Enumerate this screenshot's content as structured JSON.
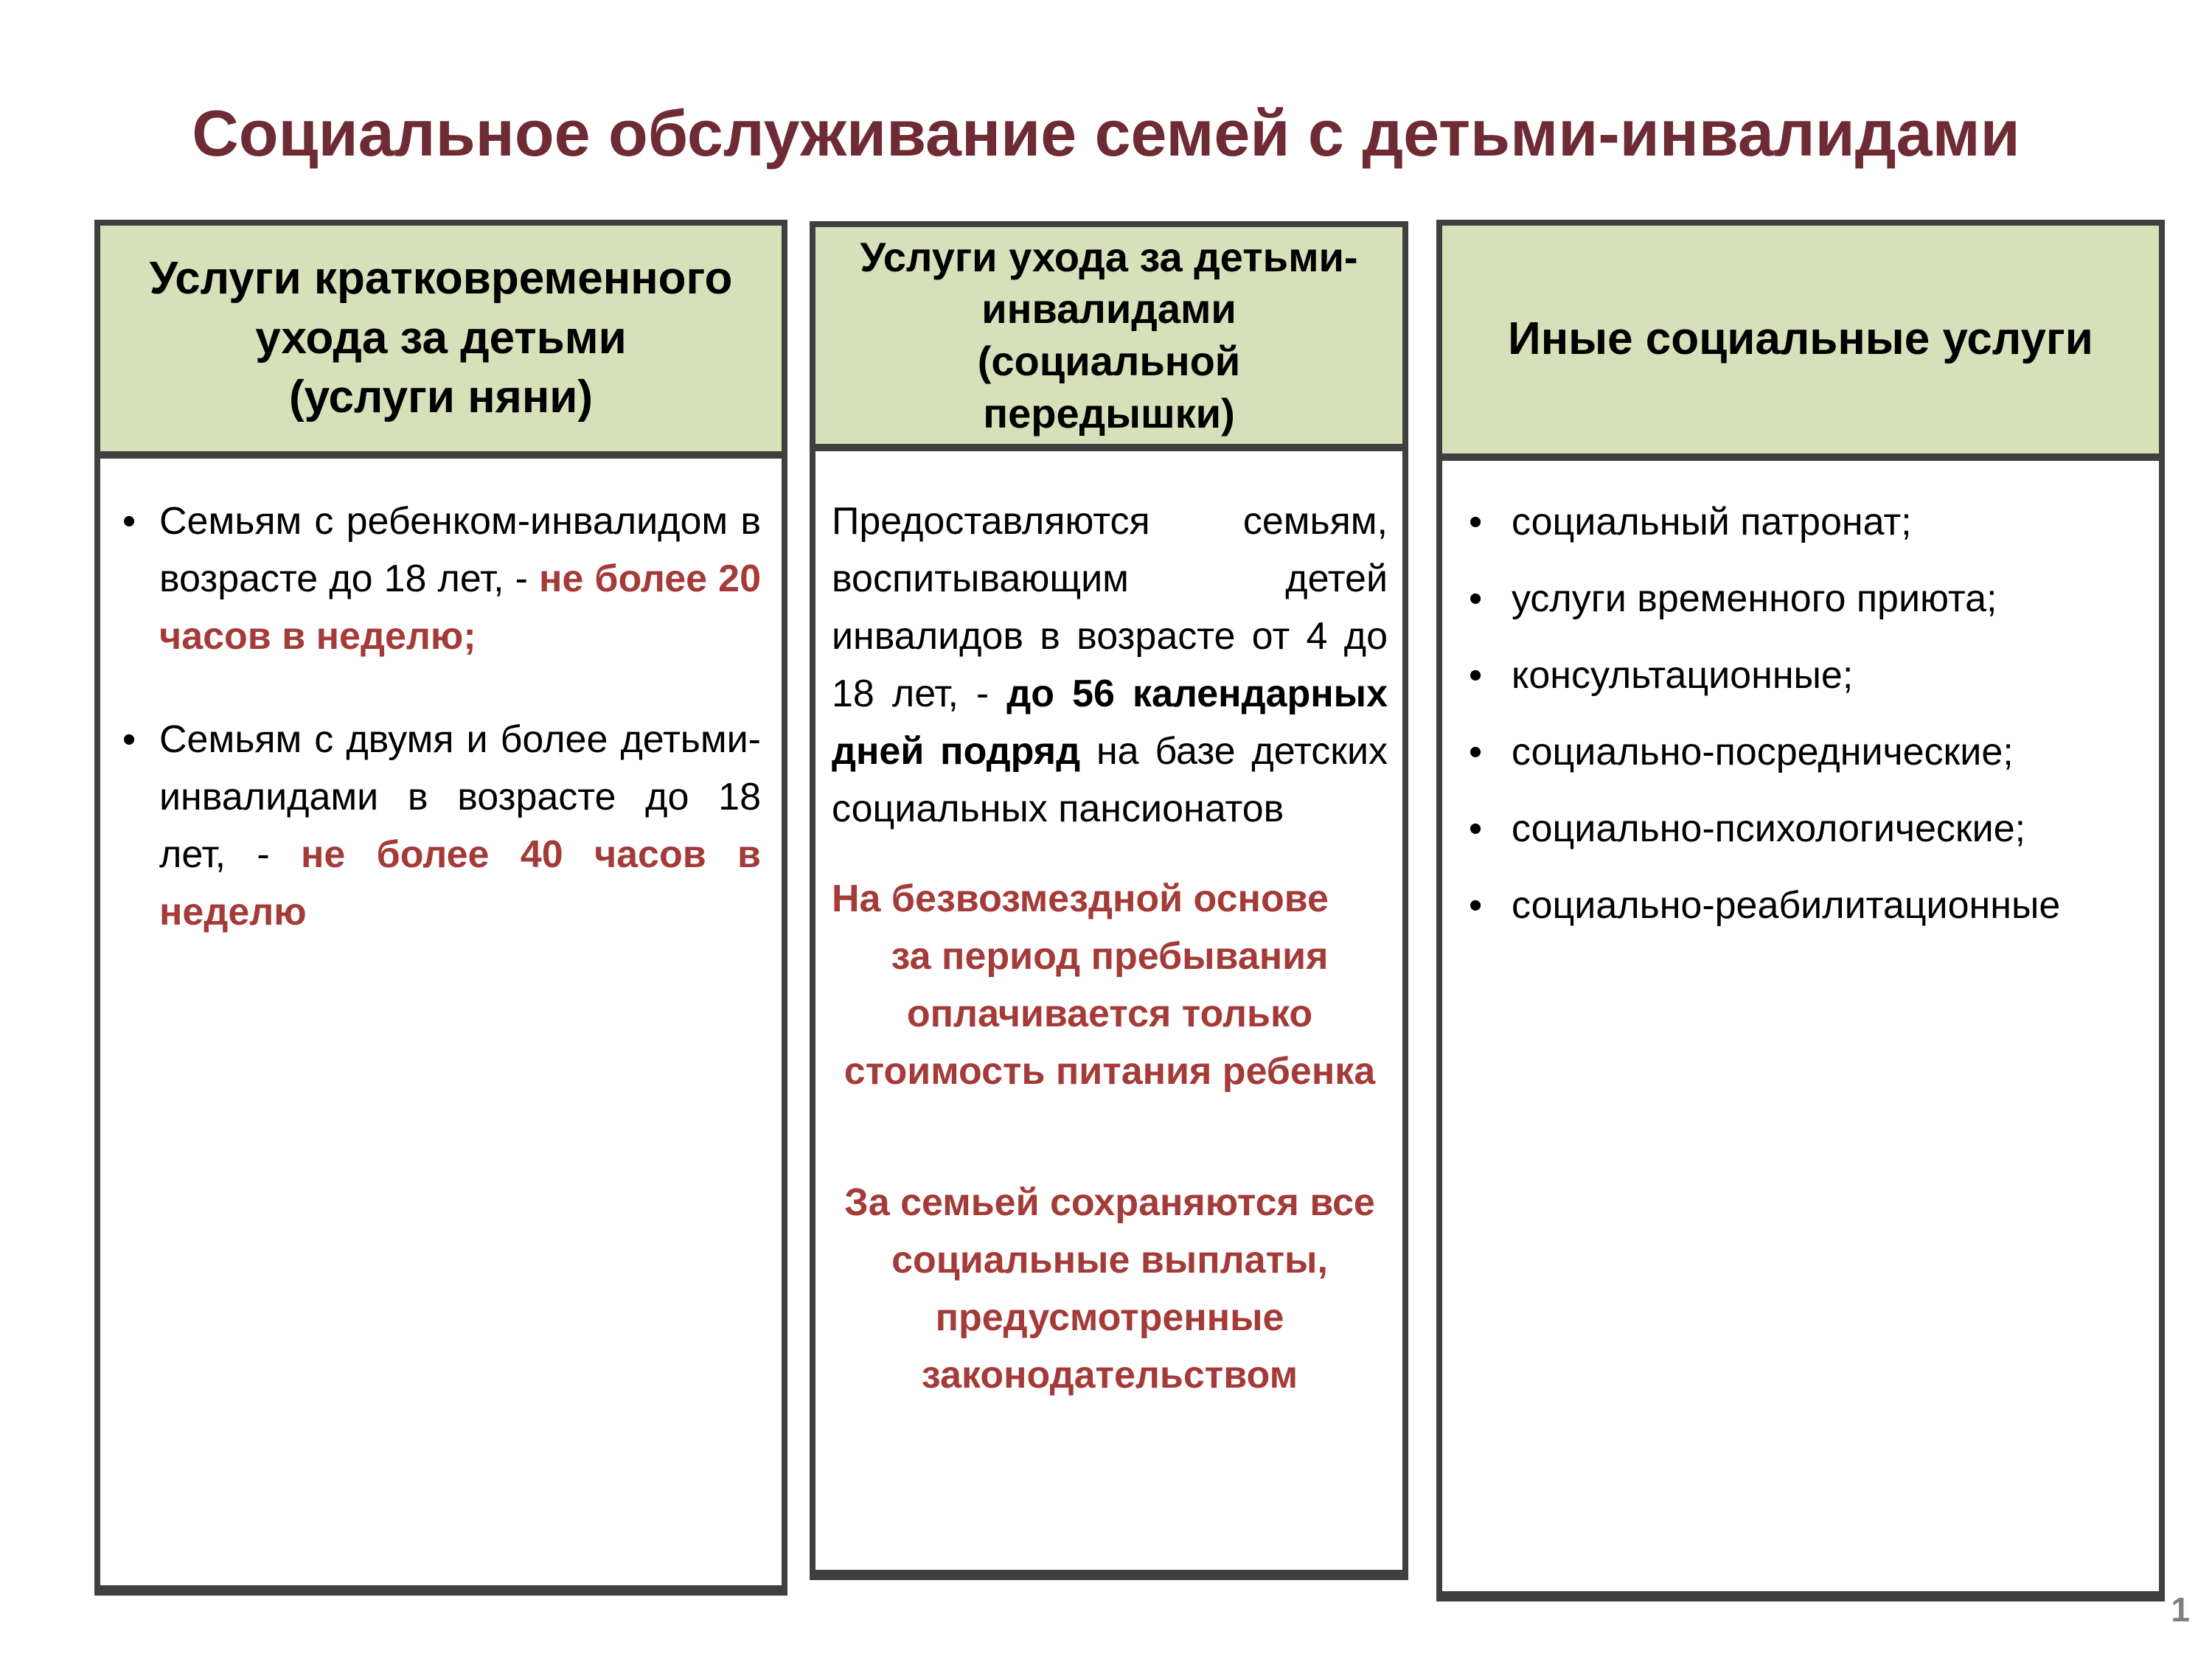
{
  "slide": {
    "title": "Социальное обслуживание семей с детьми-инвалидами",
    "page_number": "1"
  },
  "colors": {
    "title_text": "#6E2B33",
    "emphasis_text": "#A43B38",
    "header_background": "#D6E0B9",
    "box_border": "#3F3F3F",
    "page_number_text": "#808080"
  },
  "columns": [
    {
      "header": "Услуги кратковременного\nухода за детьми\n(услуги няни)",
      "bullet_marker": "•",
      "bullets": [
        {
          "text": "Семьям с ребенком-инвалидом в возрасте до 18 лет, - ",
          "emphasis": "не более 20 часов в неделю;"
        },
        {
          "text": "Семьям с двумя и более детьми-инвалидами в возрасте до 18 лет, - ",
          "emphasis": "не более 40 часов в неделю"
        }
      ]
    },
    {
      "header": "Услуги  ухода за детьми-\nинвалидами\n(социальной\nпередышки)",
      "paragraph": {
        "lead": "Предоставляются семьям, воспитывающим детей инвалидов в возрасте от 4 до 18 лет, - ",
        "bold": "до 56 календарных дней подряд",
        "tail": " на базе детских социальных пансионатов"
      },
      "note_free_basis": "На безвозмездной основе",
      "note_payment": "за период пребывания\nоплачивается только\nстоимость питания ребенка",
      "note_benefits": "За семьей сохраняются все\nсоциальные выплаты,\nпредусмотренные\nзаконодательством"
    },
    {
      "header": "Иные социальные услуги",
      "bullet_marker": "•",
      "bullets": [
        "социальный патронат;",
        "услуги временного приюта;",
        "консультационные;",
        "социально-посреднические;",
        "социально-психологические;",
        "социально-реабилитационные"
      ]
    }
  ]
}
